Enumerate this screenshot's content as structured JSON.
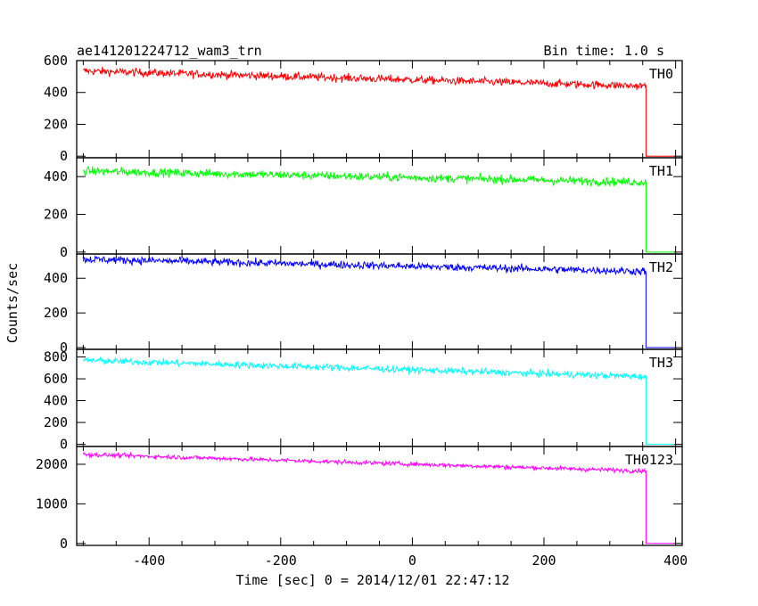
{
  "header": {
    "title": "ae141201224712_wam3_trn",
    "bin_time": "Bin time: 1.0 s"
  },
  "chart_data": {
    "type": "line",
    "xlabel": "Time [sec] 0 = 2014/12/01 22:47:12",
    "ylabel": "Counts/sec",
    "xlim": [
      -510,
      410
    ],
    "xticks": [
      -400,
      -200,
      0,
      200,
      400
    ],
    "x_start": -500,
    "x_end": 355,
    "x_last": 398,
    "panels": [
      {
        "name": "TH0",
        "color": "#ff0000",
        "ylim": [
          -10,
          600
        ],
        "yticks": [
          0,
          200,
          400,
          600
        ],
        "start_level": 535,
        "end_level": 440,
        "noise": 28,
        "after_level": 0
      },
      {
        "name": "TH1",
        "color": "#00ff00",
        "ylim": [
          -10,
          500
        ],
        "yticks": [
          0,
          200,
          400
        ],
        "start_level": 430,
        "end_level": 370,
        "noise": 25,
        "after_level": 0
      },
      {
        "name": "TH2",
        "color": "#0000ff",
        "ylim": [
          -10,
          540
        ],
        "yticks": [
          0,
          200,
          400
        ],
        "start_level": 510,
        "end_level": 440,
        "noise": 25,
        "after_level": 0
      },
      {
        "name": "TH3",
        "color": "#00ffff",
        "ylim": [
          -20,
          870
        ],
        "yticks": [
          0,
          200,
          400,
          600,
          800
        ],
        "start_level": 770,
        "end_level": 620,
        "noise": 35,
        "after_level": 0
      },
      {
        "name": "TH0123",
        "color": "#ff00ff",
        "ylim": [
          -50,
          2450
        ],
        "yticks": [
          0,
          1000,
          2000
        ],
        "start_level": 2250,
        "end_level": 1830,
        "noise": 60,
        "after_level": 0
      }
    ]
  }
}
